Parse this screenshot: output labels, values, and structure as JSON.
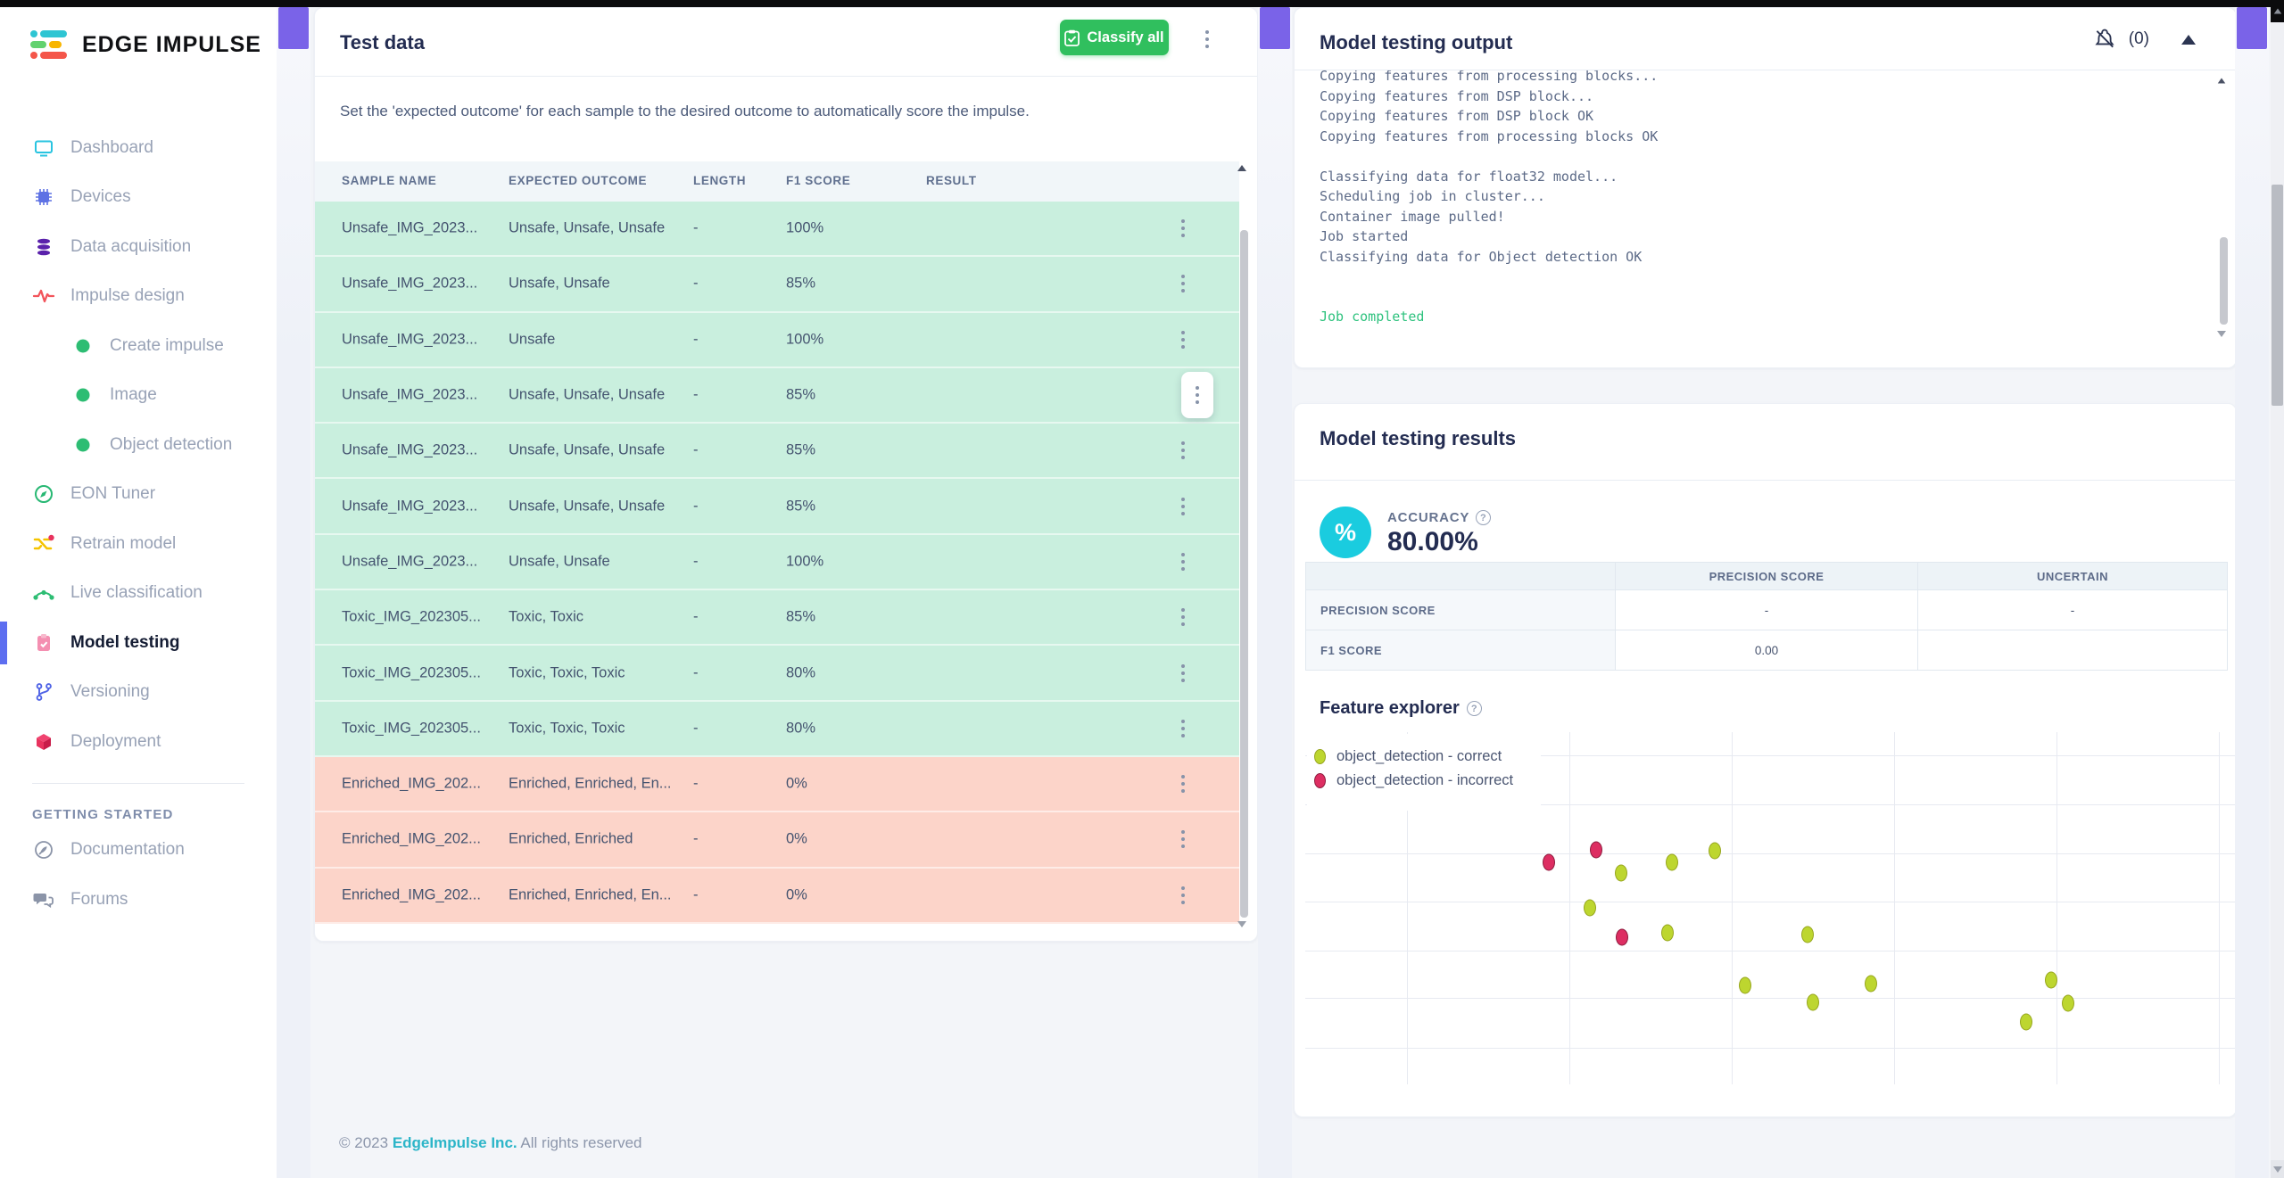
{
  "ui": {
    "help_glyph": "?",
    "percent_glyph": "%"
  },
  "logo": {
    "text": "EDGE IMPULSE"
  },
  "sidebar": {
    "items": [
      {
        "label": "Dashboard",
        "icon": "monitor-icon",
        "color": "#29c4e0",
        "sub": false,
        "active": false
      },
      {
        "label": "Devices",
        "icon": "chip-icon",
        "color": "#5e72e4",
        "sub": false,
        "active": false
      },
      {
        "label": "Data acquisition",
        "icon": "database-icon",
        "color": "#5a21ab",
        "sub": false,
        "active": false
      },
      {
        "label": "Impulse design",
        "icon": "waveform-icon",
        "color": "#f2545b",
        "sub": false,
        "active": false
      },
      {
        "label": "Create impulse",
        "icon": "dot-icon",
        "color": "#2dbd73",
        "sub": true,
        "active": false
      },
      {
        "label": "Image",
        "icon": "dot-icon",
        "color": "#2dbd73",
        "sub": true,
        "active": false
      },
      {
        "label": "Object detection",
        "icon": "dot-icon",
        "color": "#2dbd73",
        "sub": true,
        "active": false
      },
      {
        "label": "EON Tuner",
        "icon": "compass-icon",
        "color": "#27b873",
        "sub": false,
        "active": false
      },
      {
        "label": "Retrain model",
        "icon": "shuffle-icon",
        "color": "#f5c400",
        "sub": false,
        "active": false
      },
      {
        "label": "Live classification",
        "icon": "nodes-icon",
        "color": "#2dbd73",
        "sub": false,
        "active": false
      },
      {
        "label": "Model testing",
        "icon": "clipboard-check-icon",
        "color": "#f48fb1",
        "sub": false,
        "active": true
      },
      {
        "label": "Versioning",
        "icon": "branch-icon",
        "color": "#4f63e6",
        "sub": false,
        "active": false
      },
      {
        "label": "Deployment",
        "icon": "cube-icon",
        "color": "#e8335e",
        "sub": false,
        "active": false
      }
    ],
    "section_label": "GETTING STARTED",
    "secondary_items": [
      {
        "label": "Documentation",
        "icon": "rocket-icon",
        "color": "#8b94a8"
      },
      {
        "label": "Forums",
        "icon": "chat-icon",
        "color": "#8b94a8"
      }
    ]
  },
  "test_data": {
    "title": "Test data",
    "classify_all_label": "Classify all",
    "description": "Set the 'expected outcome' for each sample to the desired outcome to automatically score the impulse.",
    "columns": [
      "SAMPLE NAME",
      "EXPECTED OUTCOME",
      "LENGTH",
      "F1 SCORE",
      "RESULT"
    ],
    "rows": [
      {
        "sample": "Unsafe_IMG_2023...",
        "expected": "Unsafe, Unsafe, Unsafe",
        "length": "-",
        "f1": "100%",
        "result": "",
        "status": "pass",
        "menu_highlight": false
      },
      {
        "sample": "Unsafe_IMG_2023...",
        "expected": "Unsafe, Unsafe",
        "length": "-",
        "f1": "85%",
        "result": "",
        "status": "pass",
        "menu_highlight": false
      },
      {
        "sample": "Unsafe_IMG_2023...",
        "expected": "Unsafe",
        "length": "-",
        "f1": "100%",
        "result": "",
        "status": "pass",
        "menu_highlight": false
      },
      {
        "sample": "Unsafe_IMG_2023...",
        "expected": "Unsafe, Unsafe, Unsafe",
        "length": "-",
        "f1": "85%",
        "result": "",
        "status": "pass",
        "menu_highlight": true
      },
      {
        "sample": "Unsafe_IMG_2023...",
        "expected": "Unsafe, Unsafe, Unsafe",
        "length": "-",
        "f1": "85%",
        "result": "",
        "status": "pass",
        "menu_highlight": false
      },
      {
        "sample": "Unsafe_IMG_2023...",
        "expected": "Unsafe, Unsafe, Unsafe",
        "length": "-",
        "f1": "85%",
        "result": "",
        "status": "pass",
        "menu_highlight": false
      },
      {
        "sample": "Unsafe_IMG_2023...",
        "expected": "Unsafe, Unsafe",
        "length": "-",
        "f1": "100%",
        "result": "",
        "status": "pass",
        "menu_highlight": false
      },
      {
        "sample": "Toxic_IMG_202305...",
        "expected": "Toxic, Toxic",
        "length": "-",
        "f1": "85%",
        "result": "",
        "status": "pass",
        "menu_highlight": false
      },
      {
        "sample": "Toxic_IMG_202305...",
        "expected": "Toxic, Toxic, Toxic",
        "length": "-",
        "f1": "80%",
        "result": "",
        "status": "pass",
        "menu_highlight": false
      },
      {
        "sample": "Toxic_IMG_202305...",
        "expected": "Toxic, Toxic, Toxic",
        "length": "-",
        "f1": "80%",
        "result": "",
        "status": "pass",
        "menu_highlight": false
      },
      {
        "sample": "Enriched_IMG_202...",
        "expected": "Enriched, Enriched, En...",
        "length": "-",
        "f1": "0%",
        "result": "",
        "status": "fail",
        "menu_highlight": false
      },
      {
        "sample": "Enriched_IMG_202...",
        "expected": "Enriched, Enriched",
        "length": "-",
        "f1": "0%",
        "result": "",
        "status": "fail",
        "menu_highlight": false
      },
      {
        "sample": "Enriched_IMG_202...",
        "expected": "Enriched, Enriched, En...",
        "length": "-",
        "f1": "0%",
        "result": "",
        "status": "fail",
        "menu_highlight": false
      }
    ]
  },
  "output_panel": {
    "title": "Model testing output",
    "muted_count": "(0)",
    "lines": [
      "Copying features from processing blocks...",
      "Copying features from DSP block...",
      "Copying features from DSP block OK",
      "Copying features from processing blocks OK",
      "",
      "Classifying data for float32 model...",
      "Scheduling job in cluster...",
      "Container image pulled!",
      "Job started",
      "Classifying data for Object detection OK",
      "",
      "",
      "Job completed"
    ],
    "success_line": "Job completed"
  },
  "results_panel": {
    "title": "Model testing results",
    "accuracy_label": "ACCURACY",
    "accuracy_value": "80.00%",
    "accuracy_badge_color": "#1accdf",
    "table": {
      "col_headers": [
        "",
        "PRECISION SCORE",
        "UNCERTAIN"
      ],
      "rows": [
        {
          "label": "PRECISION SCORE",
          "values": [
            "-",
            "-"
          ]
        },
        {
          "label": "F1 SCORE",
          "values": [
            "0.00",
            ""
          ]
        }
      ]
    }
  },
  "feature_explorer": {
    "title": "Feature explorer",
    "chart_data": {
      "type": "scatter",
      "title": "Feature explorer",
      "xlabel": "",
      "ylabel": "",
      "axes_labeled": false,
      "grid": true,
      "legend_position": "top-left",
      "note": "points are percent positions of plot area, origin top-left",
      "series": [
        {
          "name": "object_detection - correct",
          "color": "#bdd62f",
          "border": "#97a61f",
          "points_pct": [
            [
              33.9,
              40.0
            ],
            [
              39.4,
              37.0
            ],
            [
              44.0,
              33.7
            ],
            [
              30.6,
              49.9
            ],
            [
              38.9,
              57.0
            ],
            [
              54.0,
              57.5
            ],
            [
              47.3,
              71.9
            ],
            [
              60.8,
              71.4
            ],
            [
              80.2,
              70.4
            ],
            [
              54.6,
              76.7
            ],
            [
              82.0,
              77.0
            ],
            [
              77.5,
              82.3
            ]
          ]
        },
        {
          "name": "object_detection - incorrect",
          "color": "#dd2e62",
          "border": "#8e1c3e",
          "points_pct": [
            [
              26.2,
              37.0
            ],
            [
              31.3,
              33.4
            ],
            [
              34.0,
              58.2
            ]
          ]
        }
      ]
    }
  },
  "footer": {
    "prefix": "© 2023",
    "company": "EdgeImpulse Inc.",
    "suffix": "All rights reserved"
  }
}
